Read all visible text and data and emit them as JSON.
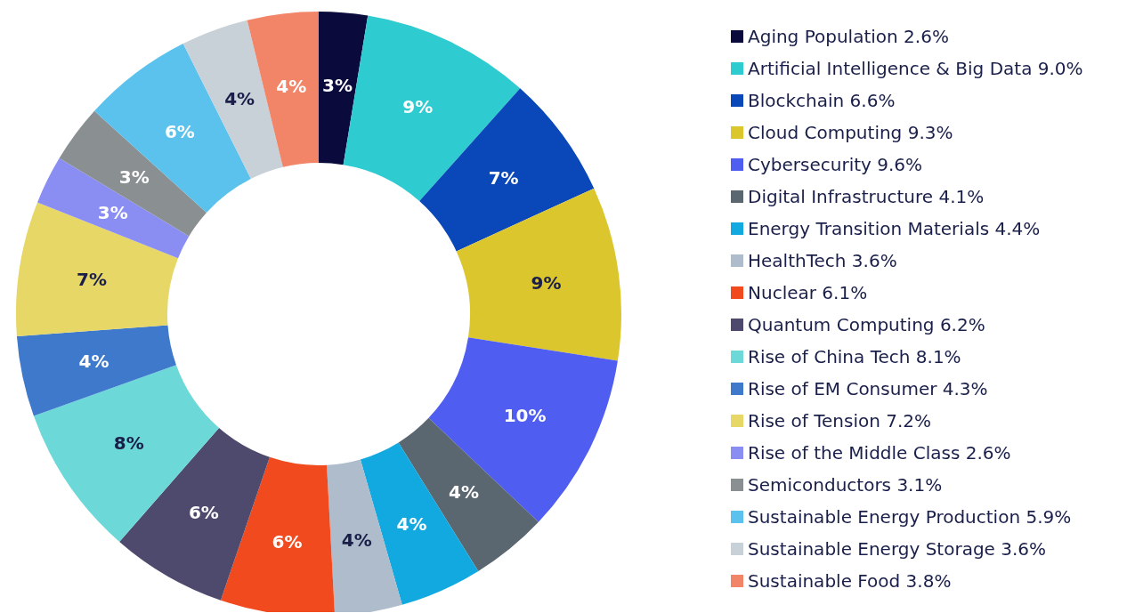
{
  "chart_data": {
    "type": "donut",
    "categories": [
      "Aging Population 2.6%",
      "Artificial Intelligence & Big Data 9.0%",
      "Blockchain 6.6%",
      "Cloud Computing 9.3%",
      "Cybersecurity 9.6%",
      "Digital Infrastructure 4.1%",
      "Energy Transition Materials 4.4%",
      "HealthTech 3.6%",
      "Nuclear 6.1%",
      "Quantum Computing 6.2%",
      "Rise of China Tech 8.1%",
      "Rise of EM Consumer 4.3%",
      "Rise of Tension 7.2%",
      "Rise of the Middle Class 2.6%",
      "Semiconductors 3.1%",
      "Sustainable Energy Production 5.9%",
      "Sustainable Energy Storage 3.6%",
      "Sustainable Food 3.8%"
    ],
    "values": [
      2.6,
      9.0,
      6.6,
      9.3,
      9.6,
      4.1,
      4.4,
      3.6,
      6.1,
      6.2,
      8.1,
      4.3,
      7.2,
      2.6,
      3.1,
      5.9,
      3.6,
      3.8
    ],
    "colors": [
      "#0a0a3c",
      "#2ecbd0",
      "#0a47b8",
      "#dcc62e",
      "#4f5ef0",
      "#5a6670",
      "#12a8e0",
      "#aebccb",
      "#f04a1e",
      "#4e4a6e",
      "#6cd8d8",
      "#3e79cc",
      "#e6d766",
      "#8a8ef2",
      "#8a8f92",
      "#5ac2ec",
      "#c8d0d8",
      "#f28468"
    ],
    "value_labels": [
      "3%",
      "9%",
      "7%",
      "9%",
      "10%",
      "4%",
      "4%",
      "4%",
      "6%",
      "6%",
      "8%",
      "4%",
      "7%",
      "3%",
      "3%",
      "6%",
      "4%",
      "4%"
    ],
    "legend": "right"
  }
}
